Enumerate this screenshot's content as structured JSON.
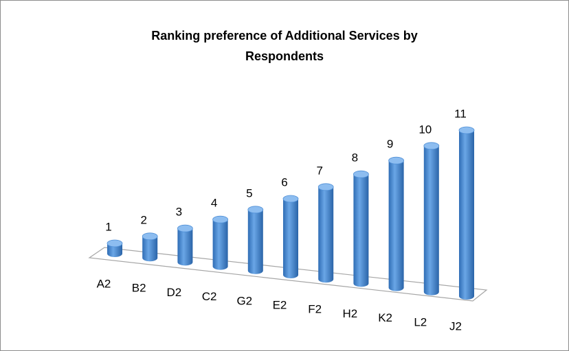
{
  "chart_data": {
    "type": "bar",
    "title": [
      "Ranking preference of Additional Services by",
      "Respondents"
    ],
    "categories": [
      "A2",
      "B2",
      "D2",
      "C2",
      "G2",
      "E2",
      "F2",
      "H2",
      "K2",
      "L2",
      "J2"
    ],
    "values": [
      1,
      2,
      3,
      4,
      5,
      6,
      7,
      8,
      9,
      10,
      11
    ],
    "color": "#4f8fd6"
  }
}
